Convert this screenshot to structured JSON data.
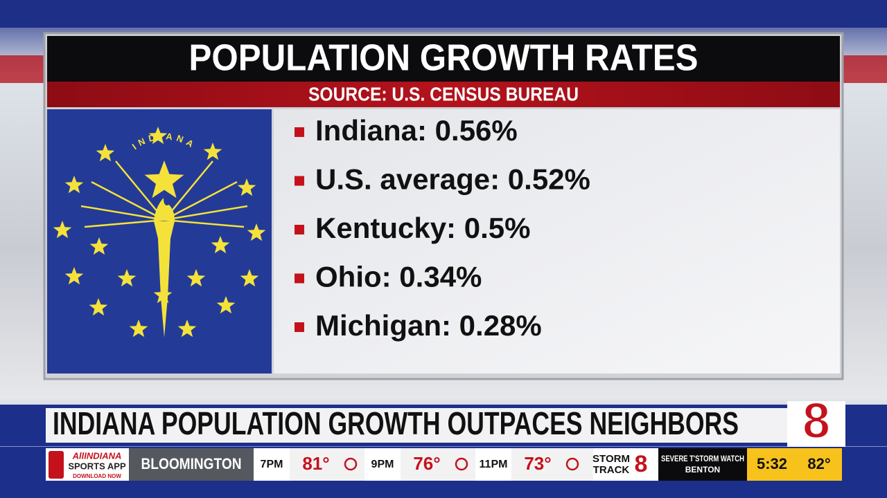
{
  "graphic": {
    "title": "POPULATION GROWTH RATES",
    "source": "SOURCE: U.S. CENSUS BUREAU",
    "flag_text": "INDIANA",
    "items": [
      "Indiana: 0.56%",
      "U.S. average: 0.52%",
      "Kentucky: 0.5%",
      "Ohio: 0.34%",
      "Michigan: 0.28%"
    ]
  },
  "lower_third": {
    "headline": "INDIANA POPULATION GROWTH OUTPACES NEIGHBORS",
    "logo": "8"
  },
  "ticker": {
    "app": [
      "AllINDIANA",
      "SPORTS APP",
      "DOWNLOAD NOW"
    ],
    "location": "BLOOMINGTON",
    "forecast": [
      {
        "time": "7PM",
        "temp": "81°"
      },
      {
        "time": "9PM",
        "temp": "76°"
      },
      {
        "time": "11PM",
        "temp": "73°"
      }
    ],
    "brand": [
      "STORM",
      "TRACK",
      "8"
    ],
    "alert": [
      "SEVERE T'STORM WATCH",
      "BENTON"
    ],
    "clock": "5:32",
    "temp": "82°"
  }
}
